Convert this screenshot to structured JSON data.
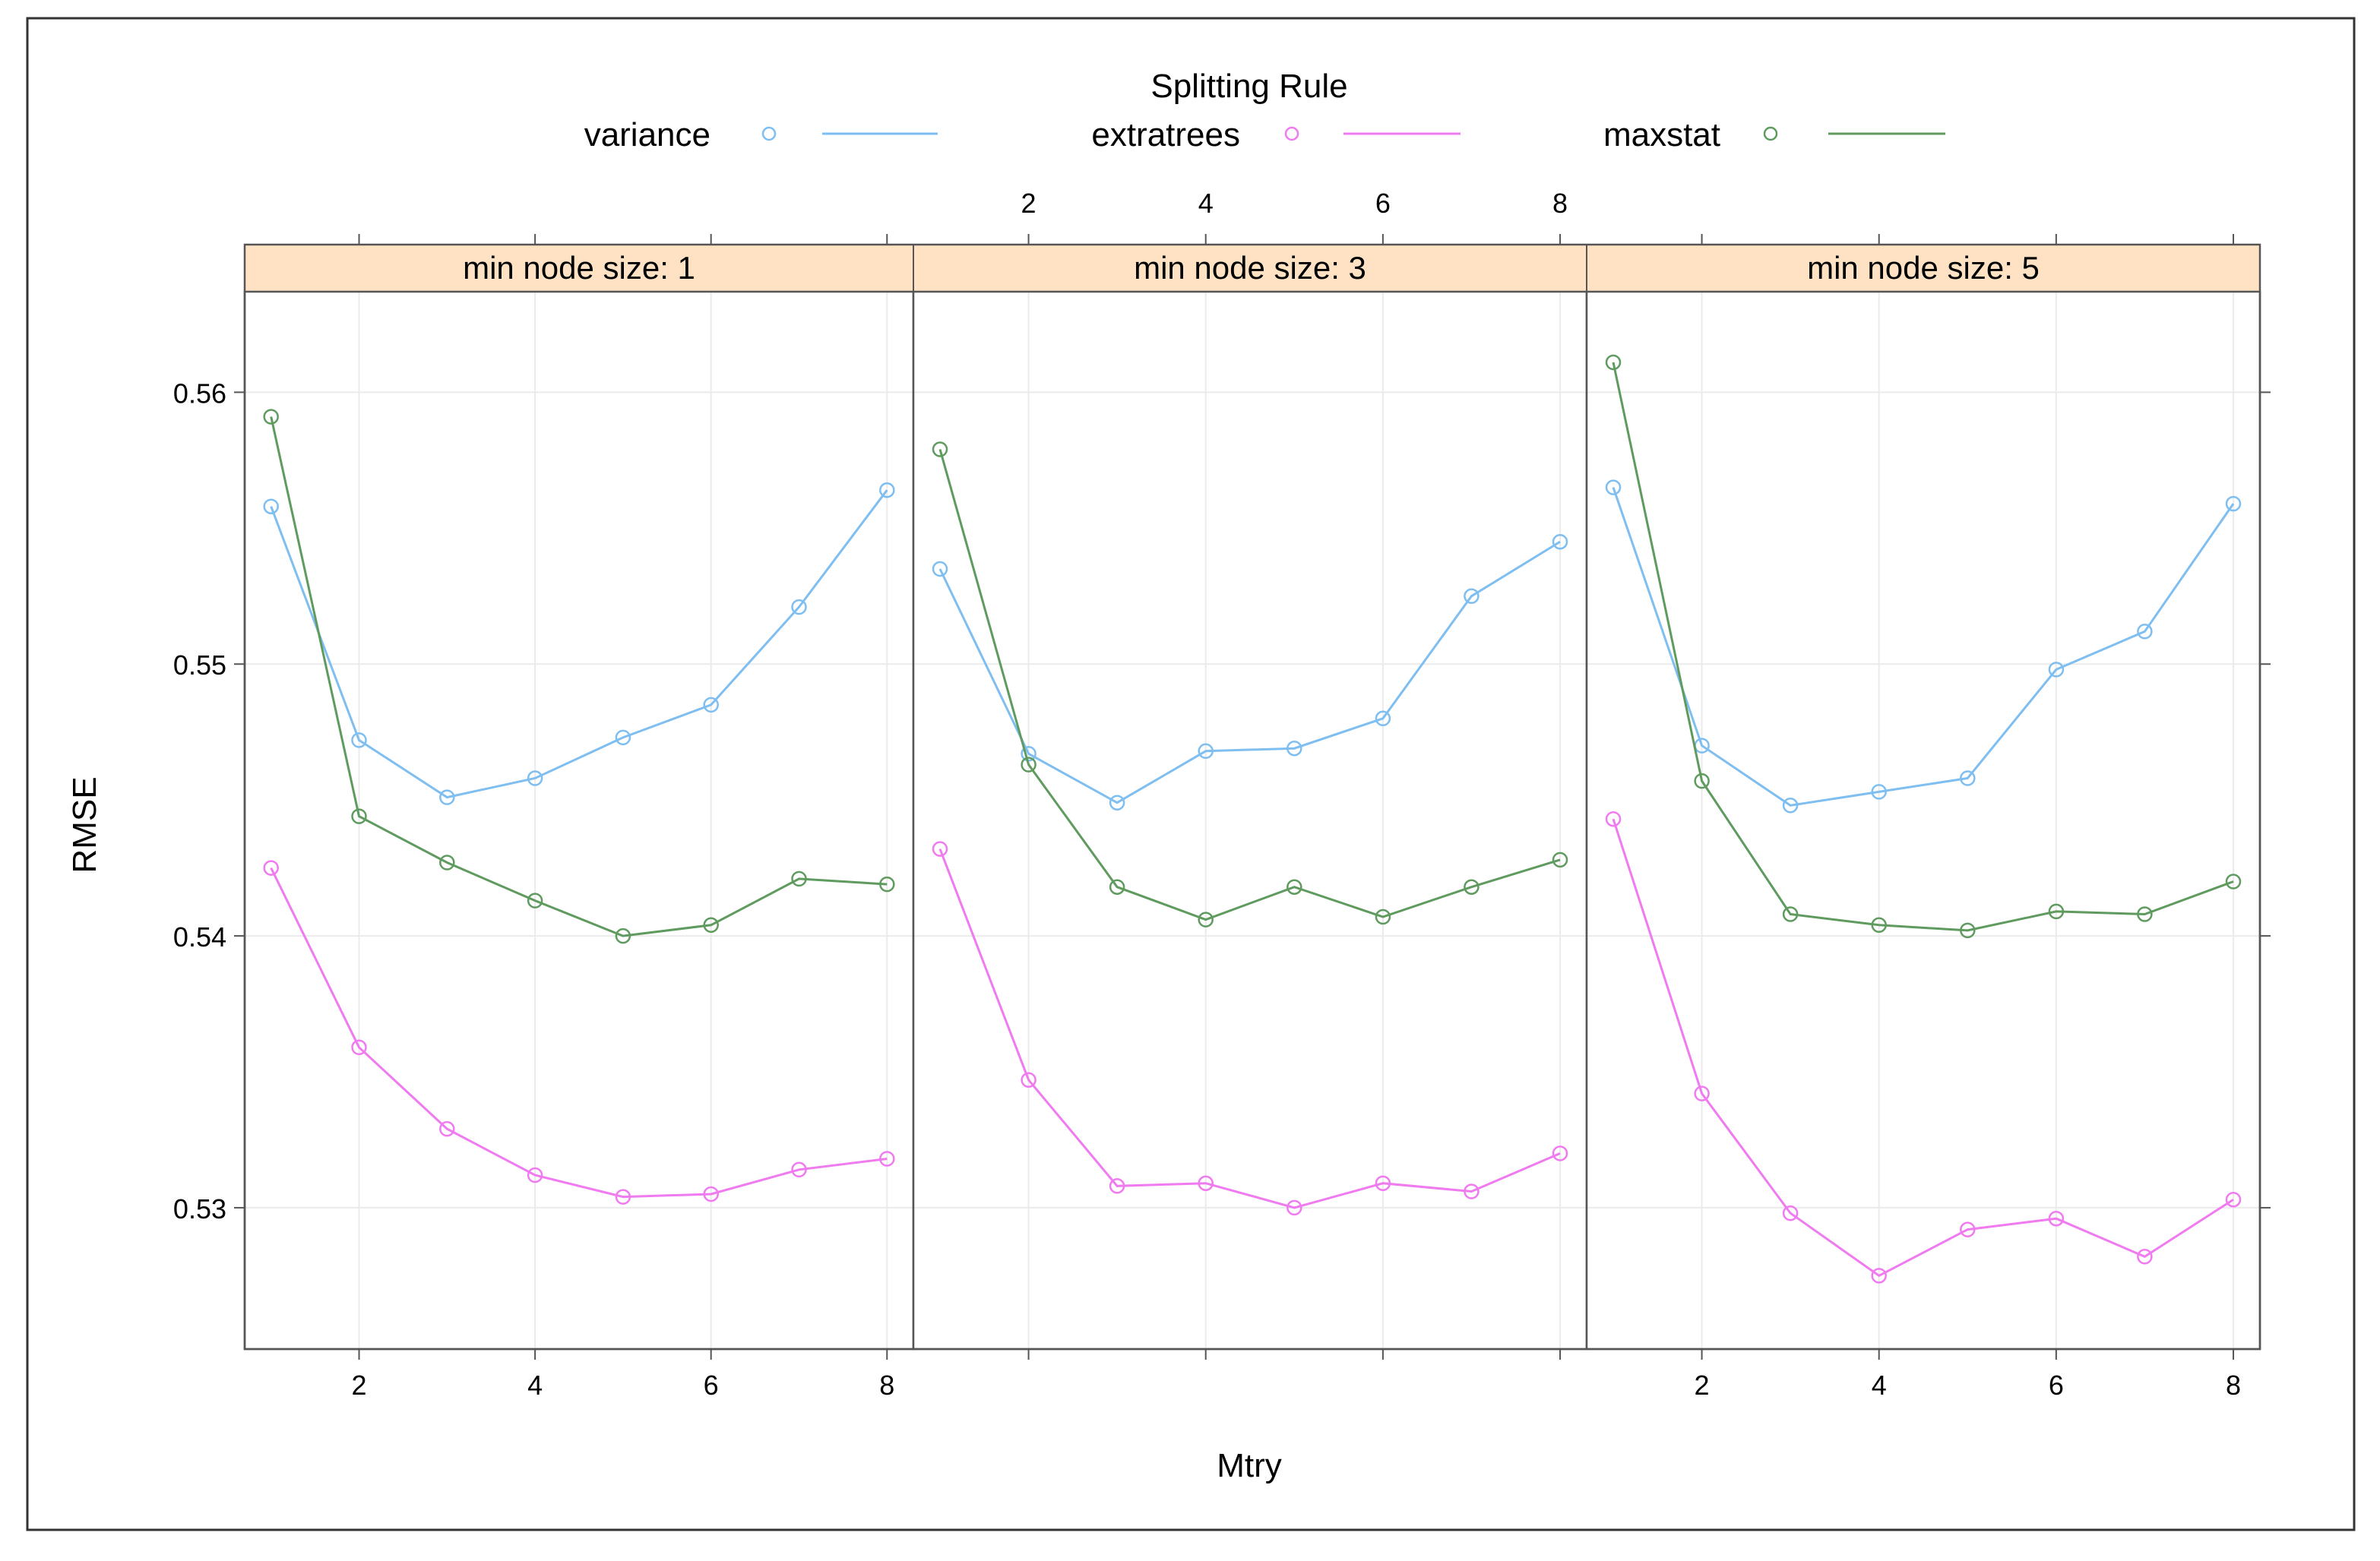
{
  "chart_data": {
    "type": "line",
    "title": "",
    "xlabel": "Mtry",
    "ylabel": "RMSE",
    "xlim": [
      0.7,
      8.3
    ],
    "ylim": [
      0.5248,
      0.5637
    ],
    "x": [
      1,
      2,
      3,
      4,
      5,
      6,
      7,
      8
    ],
    "xticks": [
      2,
      4,
      6,
      8
    ],
    "yticks": [
      0.53,
      0.54,
      0.55,
      0.56
    ],
    "ytick_labels": [
      "0.53",
      "0.54",
      "0.55",
      "0.56"
    ],
    "legend": {
      "title": "Splitting Rule",
      "position": "top",
      "entries": [
        "variance",
        "extratrees",
        "maxstat"
      ]
    },
    "grid": true,
    "panels": [
      {
        "label": "min node size: 1",
        "series": [
          {
            "name": "variance",
            "values": [
              0.5558,
              0.5472,
              0.5451,
              0.5458,
              0.5473,
              0.5485,
              0.5521,
              0.5564
            ]
          },
          {
            "name": "extratrees",
            "values": [
              0.5425,
              0.5359,
              0.5329,
              0.5312,
              0.5304,
              0.5305,
              0.5314,
              0.5318
            ]
          },
          {
            "name": "maxstat",
            "values": [
              0.5591,
              0.5444,
              0.5427,
              0.5413,
              0.54,
              0.5404,
              0.5421,
              0.5419
            ]
          }
        ]
      },
      {
        "label": "min node size: 3",
        "series": [
          {
            "name": "variance",
            "values": [
              0.5535,
              0.5467,
              0.5449,
              0.5468,
              0.5469,
              0.548,
              0.5525,
              0.5545
            ]
          },
          {
            "name": "extratrees",
            "values": [
              0.5432,
              0.5347,
              0.5308,
              0.5309,
              0.53,
              0.5309,
              0.5306,
              0.532
            ]
          },
          {
            "name": "maxstat",
            "values": [
              0.5579,
              0.5463,
              0.5418,
              0.5406,
              0.5418,
              0.5407,
              0.5418,
              0.5428
            ]
          }
        ]
      },
      {
        "label": "min node size: 5",
        "series": [
          {
            "name": "variance",
            "values": [
              0.5565,
              0.547,
              0.5448,
              0.5453,
              0.5458,
              0.5498,
              0.5512,
              0.5559
            ]
          },
          {
            "name": "extratrees",
            "values": [
              0.5443,
              0.5342,
              0.5298,
              0.5275,
              0.5292,
              0.5296,
              0.5282,
              0.5303
            ]
          },
          {
            "name": "maxstat",
            "values": [
              0.5611,
              0.5457,
              0.5408,
              0.5404,
              0.5402,
              0.5409,
              0.5408,
              0.542
            ]
          }
        ]
      }
    ],
    "colors": {
      "variance": "#7fbef0",
      "extratrees": "#f07af0",
      "maxstat": "#5f9a5f",
      "strip": "#ffe2c4",
      "grid": "#ebebeb",
      "frame": "#555555"
    }
  }
}
